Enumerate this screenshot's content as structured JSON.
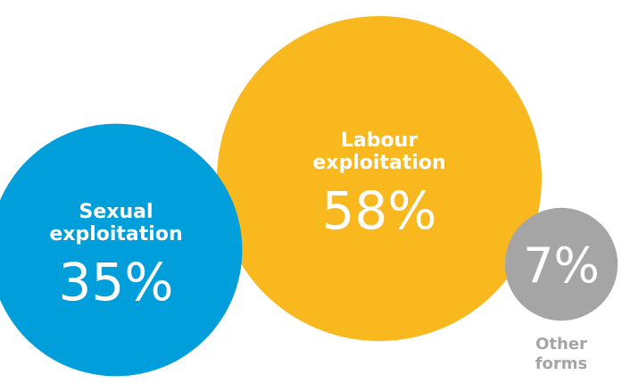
{
  "chart_data": {
    "type": "bubble",
    "categories": [
      "Labour exploitation",
      "Sexual exploitation",
      "Other forms"
    ],
    "values": [
      58,
      35,
      7
    ],
    "unit": "%",
    "slices": [
      {
        "label_lines": [
          "Labour",
          "exploitation"
        ],
        "value": 58,
        "value_label": "58%",
        "color": "#F8B81E",
        "text_color": "#ffffff",
        "label_position": "inside"
      },
      {
        "label_lines": [
          "Sexual",
          "exploitation"
        ],
        "value": 35,
        "value_label": "35%",
        "color": "#009EDB",
        "text_color": "#ffffff",
        "label_position": "inside"
      },
      {
        "label_lines": [
          "Other",
          "forms"
        ],
        "value": 7,
        "value_label": "7%",
        "color": "#A5A5A5",
        "text_color": "#ffffff",
        "label_color": "#A5A5A5",
        "label_position": "below"
      }
    ]
  }
}
